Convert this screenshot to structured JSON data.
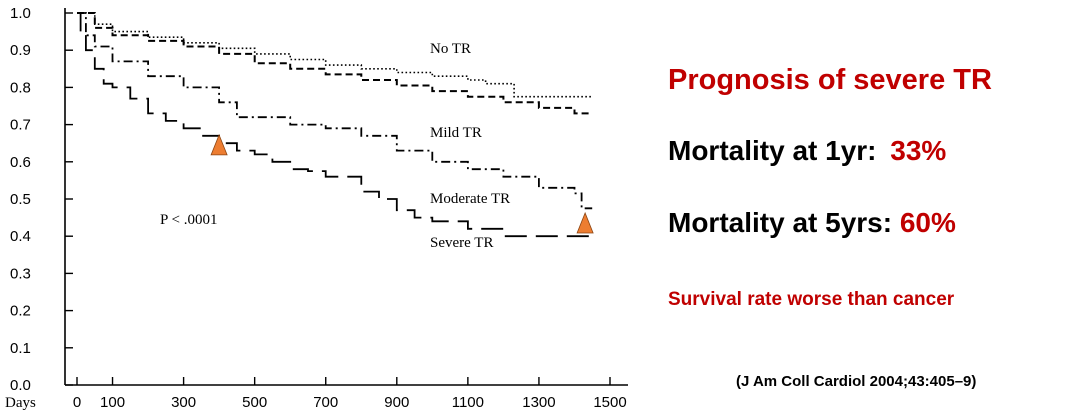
{
  "chart_data": {
    "type": "line",
    "title": "",
    "xlabel": "Days",
    "ylabel": "",
    "xlim": [
      0,
      1500
    ],
    "ylim": [
      0.0,
      1.0
    ],
    "x_ticks": [
      0,
      100,
      300,
      500,
      700,
      900,
      1100,
      1300,
      1500
    ],
    "x_tick_labels": [
      "0",
      "100",
      "300",
      "500",
      "700",
      "900",
      "1100",
      "1300",
      "1500"
    ],
    "y_ticks": [
      0.0,
      0.1,
      0.2,
      0.3,
      0.4,
      0.5,
      0.6,
      0.7,
      0.8,
      0.9,
      1.0
    ],
    "y_tick_labels": [
      "0.0",
      "0.1",
      "0.2",
      "0.3",
      "0.4",
      "0.5",
      "0.6",
      "0.7",
      "0.8",
      "0.9",
      "1.0"
    ],
    "series": [
      {
        "name": "No TR",
        "style": "dotted",
        "x": [
          0,
          50,
          100,
          200,
          300,
          400,
          500,
          600,
          700,
          800,
          900,
          1000,
          1100,
          1150,
          1200,
          1230,
          1300,
          1400,
          1450
        ],
        "y": [
          1.0,
          0.97,
          0.95,
          0.935,
          0.92,
          0.905,
          0.89,
          0.875,
          0.86,
          0.85,
          0.84,
          0.83,
          0.82,
          0.81,
          0.81,
          0.775,
          0.775,
          0.775,
          0.775
        ]
      },
      {
        "name": "Mild TR",
        "style": "dashed",
        "x": [
          0,
          50,
          100,
          200,
          300,
          400,
          500,
          600,
          700,
          800,
          900,
          1000,
          1100,
          1200,
          1300,
          1400,
          1450
        ],
        "y": [
          1.0,
          0.96,
          0.94,
          0.925,
          0.91,
          0.89,
          0.865,
          0.85,
          0.835,
          0.82,
          0.805,
          0.79,
          0.775,
          0.76,
          0.745,
          0.73,
          0.73
        ]
      },
      {
        "name": "Moderate TR",
        "style": "dashdot",
        "x": [
          0,
          25,
          50,
          100,
          200,
          300,
          400,
          450,
          500,
          600,
          700,
          800,
          900,
          1000,
          1100,
          1200,
          1300,
          1400,
          1420,
          1450
        ],
        "y": [
          1.0,
          0.94,
          0.91,
          0.87,
          0.83,
          0.8,
          0.76,
          0.72,
          0.72,
          0.7,
          0.69,
          0.67,
          0.63,
          0.6,
          0.58,
          0.56,
          0.53,
          0.515,
          0.475,
          0.475
        ]
      },
      {
        "name": "Severe TR",
        "style": "longdash",
        "x": [
          0,
          10,
          25,
          50,
          75,
          100,
          150,
          200,
          250,
          300,
          350,
          400,
          450,
          500,
          550,
          600,
          650,
          700,
          800,
          850,
          900,
          950,
          1000,
          1100,
          1200,
          1300,
          1400,
          1450
        ],
        "y": [
          1.0,
          0.95,
          0.9,
          0.85,
          0.81,
          0.8,
          0.77,
          0.73,
          0.71,
          0.69,
          0.67,
          0.65,
          0.63,
          0.62,
          0.6,
          0.58,
          0.575,
          0.56,
          0.52,
          0.5,
          0.47,
          0.45,
          0.44,
          0.42,
          0.4,
          0.4,
          0.4,
          0.4
        ]
      }
    ],
    "annotations": [
      {
        "text": "P < .0001"
      },
      {
        "marker": "triangle",
        "color": "#ED7D31",
        "x": 400,
        "y": 0.64
      },
      {
        "marker": "triangle",
        "color": "#ED7D31",
        "x": 1430,
        "y": 0.43
      }
    ]
  },
  "side": {
    "title": "Prognosis of severe TR",
    "line1_label": "Mortality at 1yr:",
    "line1_value": "33%",
    "line2_label": "Mortality at 5yrs:",
    "line2_value": "60%",
    "note": "Survival rate worse than cancer",
    "citation": "(J Am Coll Cardiol 2004;43:405–9)"
  },
  "colors": {
    "accent": "#C00000",
    "text": "#000000",
    "marker": "#ED7D31"
  }
}
